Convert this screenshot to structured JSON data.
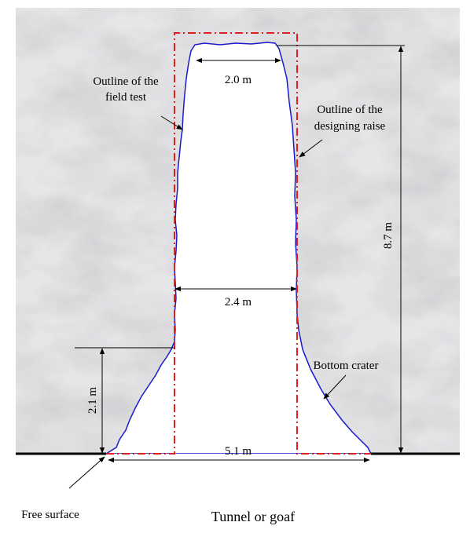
{
  "labels": {
    "field_test": [
      "Outline of the",
      "field test"
    ],
    "designing_raise": [
      "Outline of the",
      "designing raise"
    ],
    "bottom_crater": "Bottom crater",
    "free_surface": "Free surface",
    "tunnel": "Tunnel or goaf"
  },
  "dimensions": {
    "top_width": "2.0 m",
    "mid_width": "2.4 m",
    "bottom_width": "5.1 m",
    "height": "8.7 m",
    "crater_height": "2.1 m"
  }
}
